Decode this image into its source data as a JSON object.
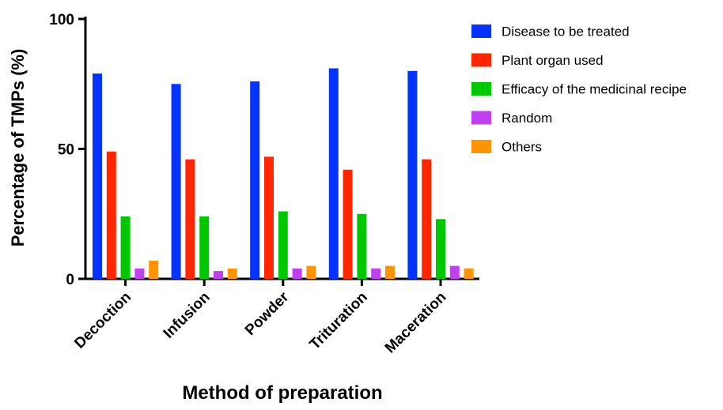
{
  "chart_data": {
    "type": "bar",
    "xlabel": "Method of preparation",
    "ylabel": "Percentage of TMPs (%)",
    "ylim": [
      0,
      100
    ],
    "yticks": [
      0,
      50,
      100
    ],
    "categories": [
      "Decoction",
      "Infusion",
      "Powder",
      "Trituration",
      "Maceration"
    ],
    "series": [
      {
        "name": "Disease to be treated",
        "color": "#0433FF",
        "values": [
          79,
          75,
          76,
          81,
          80
        ]
      },
      {
        "name": "Plant organ used",
        "color": "#FF2600",
        "values": [
          49,
          46,
          47,
          42,
          46
        ]
      },
      {
        "name": "Efficacy of the medicinal recipe",
        "color": "#00C800",
        "values": [
          24,
          24,
          26,
          25,
          23
        ]
      },
      {
        "name": "Random",
        "color": "#C040F0",
        "values": [
          4,
          3,
          4,
          4,
          5
        ]
      },
      {
        "name": "Others",
        "color": "#FF9300",
        "values": [
          7,
          4,
          5,
          5,
          4
        ]
      }
    ],
    "legend_position": "right",
    "grid": false
  }
}
